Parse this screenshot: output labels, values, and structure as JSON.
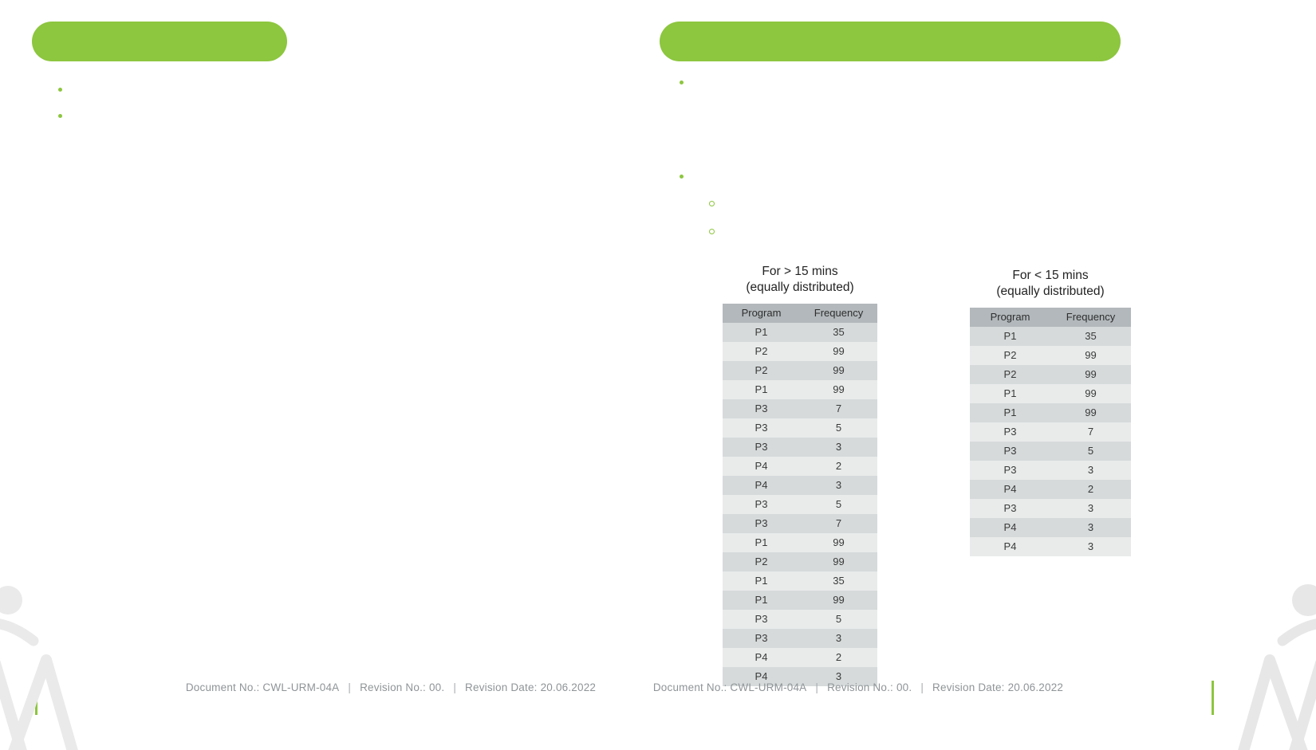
{
  "colors": {
    "accent_green": "#8dc63f",
    "table_header_gray": "#b2b8bb",
    "table_row_dark": "#d6dadb",
    "table_row_light": "#e9ebeb",
    "footer_text": "#8f9497"
  },
  "tables": [
    {
      "title_line1": "For > 15 mins",
      "title_line2": "(equally distributed)",
      "headers": [
        "Program",
        "Frequency"
      ],
      "rows": [
        [
          "P1",
          "35"
        ],
        [
          "P2",
          "99"
        ],
        [
          "P2",
          "99"
        ],
        [
          "P1",
          "99"
        ],
        [
          "P3",
          "7"
        ],
        [
          "P3",
          "5"
        ],
        [
          "P3",
          "3"
        ],
        [
          "P4",
          "2"
        ],
        [
          "P4",
          "3"
        ],
        [
          "P3",
          "5"
        ],
        [
          "P3",
          "7"
        ],
        [
          "P1",
          "99"
        ],
        [
          "P2",
          "99"
        ],
        [
          "P1",
          "35"
        ],
        [
          "P1",
          "99"
        ],
        [
          "P3",
          "5"
        ],
        [
          "P3",
          "3"
        ],
        [
          "P4",
          "2"
        ],
        [
          "P4",
          "3"
        ]
      ]
    },
    {
      "title_line1": "For < 15 mins",
      "title_line2": "(equally distributed)",
      "headers": [
        "Program",
        "Frequency"
      ],
      "rows": [
        [
          "P1",
          "35"
        ],
        [
          "P2",
          "99"
        ],
        [
          "P2",
          "99"
        ],
        [
          "P1",
          "99"
        ],
        [
          "P1",
          "99"
        ],
        [
          "P3",
          "7"
        ],
        [
          "P3",
          "5"
        ],
        [
          "P3",
          "3"
        ],
        [
          "P4",
          "2"
        ],
        [
          "P3",
          "3"
        ],
        [
          "P4",
          "3"
        ],
        [
          "P4",
          "3"
        ]
      ]
    }
  ],
  "footer": {
    "document_no": "Document No.: CWL-URM-04A",
    "divider": "|",
    "revision_no": "Revision No.: 00.",
    "revision_date": "Revision Date: 20.06.2022"
  }
}
